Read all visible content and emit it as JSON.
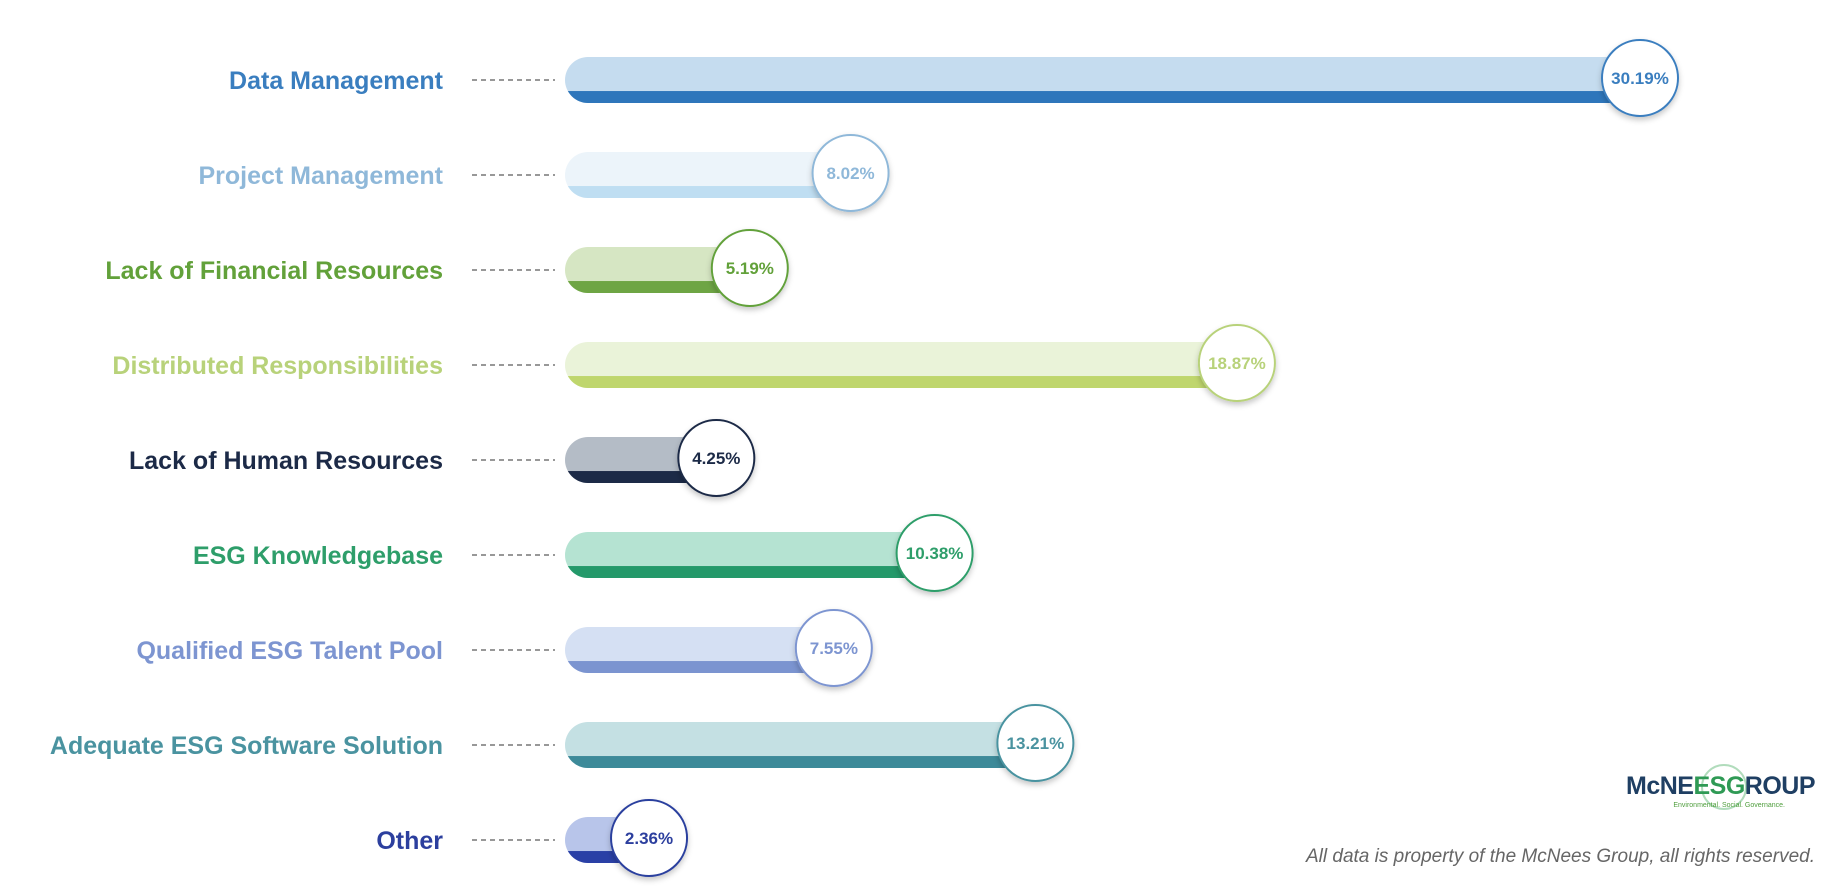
{
  "chart_data": {
    "type": "bar",
    "orientation": "horizontal",
    "categories": [
      "Data Management",
      "Project Management",
      "Lack of Financial Resources",
      "Distributed Responsibilities",
      "Lack of Human Resources",
      "ESG Knowledgebase",
      "Qualified ESG Talent Pool",
      "Adequate ESG Software Solution",
      "Other"
    ],
    "values": [
      30.19,
      8.02,
      5.19,
      18.87,
      4.25,
      10.38,
      7.55,
      13.21,
      2.36
    ],
    "value_labels": [
      "30.19%",
      "8.02%",
      "5.19%",
      "18.87%",
      "4.25%",
      "10.38%",
      "7.55%",
      "13.21%",
      "2.36%"
    ],
    "unit": "%",
    "xlim": [
      0,
      30.19
    ],
    "grid": false,
    "legend": "none",
    "colors": [
      {
        "label": "#3a7ebf",
        "light": "#c5dcef",
        "dark": "#2e76bb"
      },
      {
        "label": "#8fb8d9",
        "light": "#ecf4fa",
        "dark": "#bfdef2"
      },
      {
        "label": "#62a13a",
        "light": "#d6e6c3",
        "dark": "#6ea544"
      },
      {
        "label": "#b8d27a",
        "light": "#eaf3d9",
        "dark": "#bfd66d"
      },
      {
        "label": "#1c2a47",
        "light": "#b4bcc6",
        "dark": "#1c2a47"
      },
      {
        "label": "#2e9e6a",
        "light": "#b5e3d2",
        "dark": "#24996a"
      },
      {
        "label": "#7d95d1",
        "light": "#d5e0f3",
        "dark": "#7b94d0"
      },
      {
        "label": "#4a93a0",
        "light": "#c4e0e3",
        "dark": "#3d8a99"
      },
      {
        "label": "#2c3f9e",
        "light": "#b8c5ea",
        "dark": "#2a40a6"
      }
    ]
  },
  "logo": {
    "pre": "McNE",
    "esg": "ESG",
    "post": "ROUP",
    "tagline": "Environmental. Social. Governance."
  },
  "footer": "All data is property of the McNees Group, all rights reserved."
}
